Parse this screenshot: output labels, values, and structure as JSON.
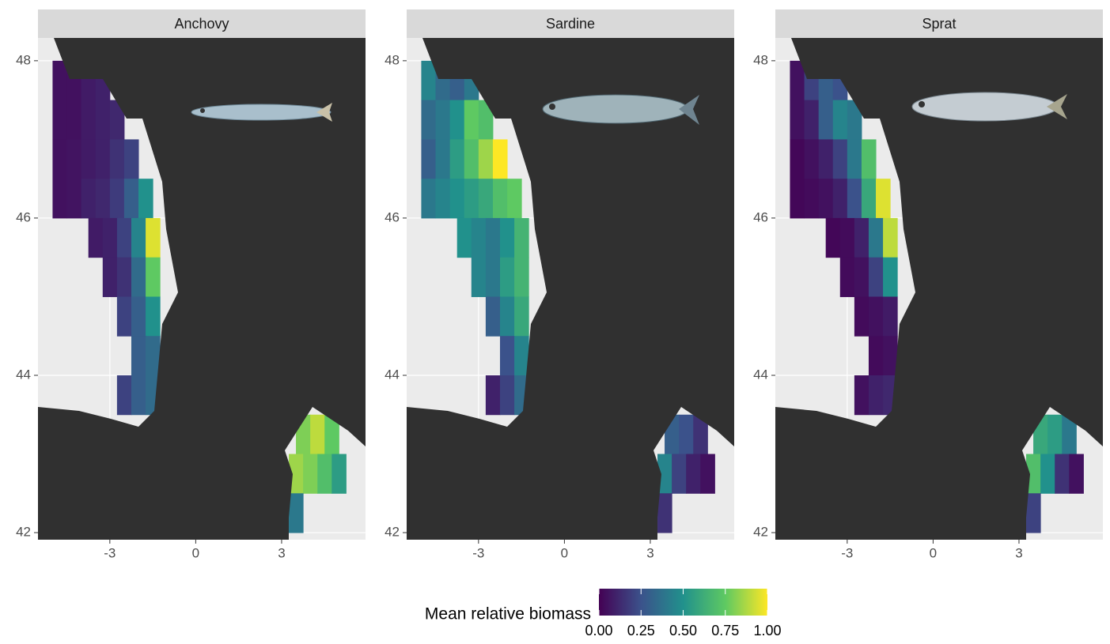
{
  "chart_data": {
    "type": "heatmap",
    "xlim": [
      -5.51,
      5.93
    ],
    "ylim": [
      41.91,
      48.29
    ],
    "xticks": [
      -3,
      0,
      3
    ],
    "yticks": [
      42,
      44,
      46,
      48
    ],
    "legend": {
      "title": "Mean relative biomass",
      "clim": [
        0,
        1
      ],
      "ticks": [
        {
          "value": 0,
          "label": "0.00"
        },
        {
          "value": 0.25,
          "label": "0.25"
        },
        {
          "value": 0.5,
          "label": "0.50"
        },
        {
          "value": 0.75,
          "label": "0.75"
        },
        {
          "value": 1,
          "label": "1.00"
        }
      ]
    },
    "facets": [
      {
        "title": "Anchovy",
        "rows": [
          {
            "lat": 47.75,
            "lon": [
              -4.75,
              -4.25,
              -3.75,
              -3.25
            ],
            "values": [
              0.05,
              0.05,
              0.08,
              0.1
            ]
          },
          {
            "lat": 47.25,
            "lon": [
              -4.75,
              -4.25,
              -3.75,
              -3.25,
              -2.75
            ],
            "values": [
              0.05,
              0.05,
              0.08,
              0.1,
              0.12
            ]
          },
          {
            "lat": 46.75,
            "lon": [
              -4.75,
              -4.25,
              -3.75,
              -3.25,
              -2.75,
              -2.25
            ],
            "values": [
              0.05,
              0.06,
              0.08,
              0.1,
              0.15,
              0.2
            ]
          },
          {
            "lat": 46.25,
            "lon": [
              -4.75,
              -4.25,
              -3.75,
              -3.25,
              -2.75,
              -2.25,
              -1.75
            ],
            "values": [
              0.05,
              0.06,
              0.1,
              0.12,
              0.18,
              0.3,
              0.5
            ]
          },
          {
            "lat": 45.75,
            "lon": [
              -3.5,
              -3.0,
              -2.5,
              -2.0,
              -1.5
            ],
            "values": [
              0.08,
              0.1,
              0.2,
              0.45,
              0.95
            ]
          },
          {
            "lat": 45.25,
            "lon": [
              -3.0,
              -2.5,
              -2.0,
              -1.5
            ],
            "values": [
              0.1,
              0.15,
              0.35,
              0.75
            ]
          },
          {
            "lat": 44.75,
            "lon": [
              -2.5,
              -2.0,
              -1.5
            ],
            "values": [
              0.2,
              0.3,
              0.5
            ]
          },
          {
            "lat": 44.25,
            "lon": [
              -2.0,
              -1.5
            ],
            "values": [
              0.3,
              0.35
            ]
          },
          {
            "lat": 43.75,
            "lon": [
              -2.5,
              -2.0,
              -1.5
            ],
            "values": [
              0.2,
              0.3,
              0.35
            ]
          },
          {
            "lat": 43.25,
            "lon": [
              3.75,
              4.25,
              4.75
            ],
            "values": [
              0.8,
              0.9,
              0.75
            ]
          },
          {
            "lat": 42.75,
            "lon": [
              3.5,
              4.0,
              4.5,
              5.0
            ],
            "values": [
              0.85,
              0.8,
              0.7,
              0.55
            ]
          },
          {
            "lat": 42.25,
            "lon": [
              3.5
            ],
            "values": [
              0.4
            ]
          }
        ]
      },
      {
        "title": "Sardine",
        "rows": [
          {
            "lat": 47.75,
            "lon": [
              -4.75,
              -4.25,
              -3.75,
              -3.25
            ],
            "values": [
              0.45,
              0.35,
              0.3,
              0.4
            ]
          },
          {
            "lat": 47.25,
            "lon": [
              -4.75,
              -4.25,
              -3.75,
              -3.25,
              -2.75
            ],
            "values": [
              0.35,
              0.4,
              0.5,
              0.75,
              0.7
            ]
          },
          {
            "lat": 46.75,
            "lon": [
              -4.75,
              -4.25,
              -3.75,
              -3.25,
              -2.75,
              -2.25
            ],
            "values": [
              0.3,
              0.4,
              0.55,
              0.7,
              0.85,
              1.0
            ]
          },
          {
            "lat": 46.25,
            "lon": [
              -4.75,
              -4.25,
              -3.75,
              -3.25,
              -2.75,
              -2.25,
              -1.75
            ],
            "values": [
              0.4,
              0.45,
              0.5,
              0.55,
              0.6,
              0.7,
              0.75
            ]
          },
          {
            "lat": 45.75,
            "lon": [
              -3.5,
              -3.0,
              -2.5,
              -2.0,
              -1.5
            ],
            "values": [
              0.5,
              0.45,
              0.4,
              0.5,
              0.65
            ]
          },
          {
            "lat": 45.25,
            "lon": [
              -3.0,
              -2.5,
              -2.0,
              -1.5
            ],
            "values": [
              0.45,
              0.4,
              0.55,
              0.65
            ]
          },
          {
            "lat": 44.75,
            "lon": [
              -2.5,
              -2.0,
              -1.5
            ],
            "values": [
              0.3,
              0.45,
              0.6
            ]
          },
          {
            "lat": 44.25,
            "lon": [
              -2.0,
              -1.5
            ],
            "values": [
              0.25,
              0.45
            ]
          },
          {
            "lat": 43.75,
            "lon": [
              -2.5,
              -2.0,
              -1.5
            ],
            "values": [
              0.1,
              0.2,
              0.35
            ]
          },
          {
            "lat": 43.25,
            "lon": [
              3.75,
              4.25,
              4.75
            ],
            "values": [
              0.3,
              0.25,
              0.15
            ]
          },
          {
            "lat": 42.75,
            "lon": [
              3.5,
              4.0,
              4.5,
              5.0
            ],
            "values": [
              0.45,
              0.2,
              0.1,
              0.05
            ]
          },
          {
            "lat": 42.25,
            "lon": [
              3.5
            ],
            "values": [
              0.15
            ]
          }
        ]
      },
      {
        "title": "Sprat",
        "rows": [
          {
            "lat": 47.75,
            "lon": [
              -4.75,
              -4.25,
              -3.75,
              -3.25
            ],
            "values": [
              0.05,
              0.2,
              0.3,
              0.25
            ]
          },
          {
            "lat": 47.25,
            "lon": [
              -4.75,
              -4.25,
              -3.75,
              -3.25,
              -2.75
            ],
            "values": [
              0.05,
              0.1,
              0.3,
              0.45,
              0.4
            ]
          },
          {
            "lat": 46.75,
            "lon": [
              -4.75,
              -4.25,
              -3.75,
              -3.25,
              -2.75,
              -2.25
            ],
            "values": [
              0.02,
              0.05,
              0.1,
              0.2,
              0.4,
              0.7
            ]
          },
          {
            "lat": 46.25,
            "lon": [
              -4.75,
              -4.25,
              -3.75,
              -3.25,
              -2.75,
              -2.25,
              -1.75
            ],
            "values": [
              0.02,
              0.03,
              0.05,
              0.1,
              0.25,
              0.6,
              0.95
            ]
          },
          {
            "lat": 45.75,
            "lon": [
              -3.5,
              -3.0,
              -2.5,
              -2.0,
              -1.5
            ],
            "values": [
              0.02,
              0.03,
              0.1,
              0.4,
              0.9
            ]
          },
          {
            "lat": 45.25,
            "lon": [
              -3.0,
              -2.5,
              -2.0,
              -1.5
            ],
            "values": [
              0.03,
              0.05,
              0.2,
              0.5
            ]
          },
          {
            "lat": 44.75,
            "lon": [
              -2.5,
              -2.0,
              -1.5
            ],
            "values": [
              0.03,
              0.05,
              0.08
            ]
          },
          {
            "lat": 44.25,
            "lon": [
              -2.0,
              -1.5
            ],
            "values": [
              0.03,
              0.05
            ]
          },
          {
            "lat": 43.75,
            "lon": [
              -2.5,
              -2.0,
              -1.5
            ],
            "values": [
              0.05,
              0.1,
              0.12
            ]
          },
          {
            "lat": 43.25,
            "lon": [
              3.75,
              4.25,
              4.75
            ],
            "values": [
              0.6,
              0.55,
              0.4
            ]
          },
          {
            "lat": 42.75,
            "lon": [
              3.5,
              4.0,
              4.5,
              5.0
            ],
            "values": [
              0.7,
              0.5,
              0.15,
              0.05
            ]
          },
          {
            "lat": 42.25,
            "lon": [
              3.5
            ],
            "values": [
              0.2
            ]
          }
        ]
      }
    ]
  }
}
